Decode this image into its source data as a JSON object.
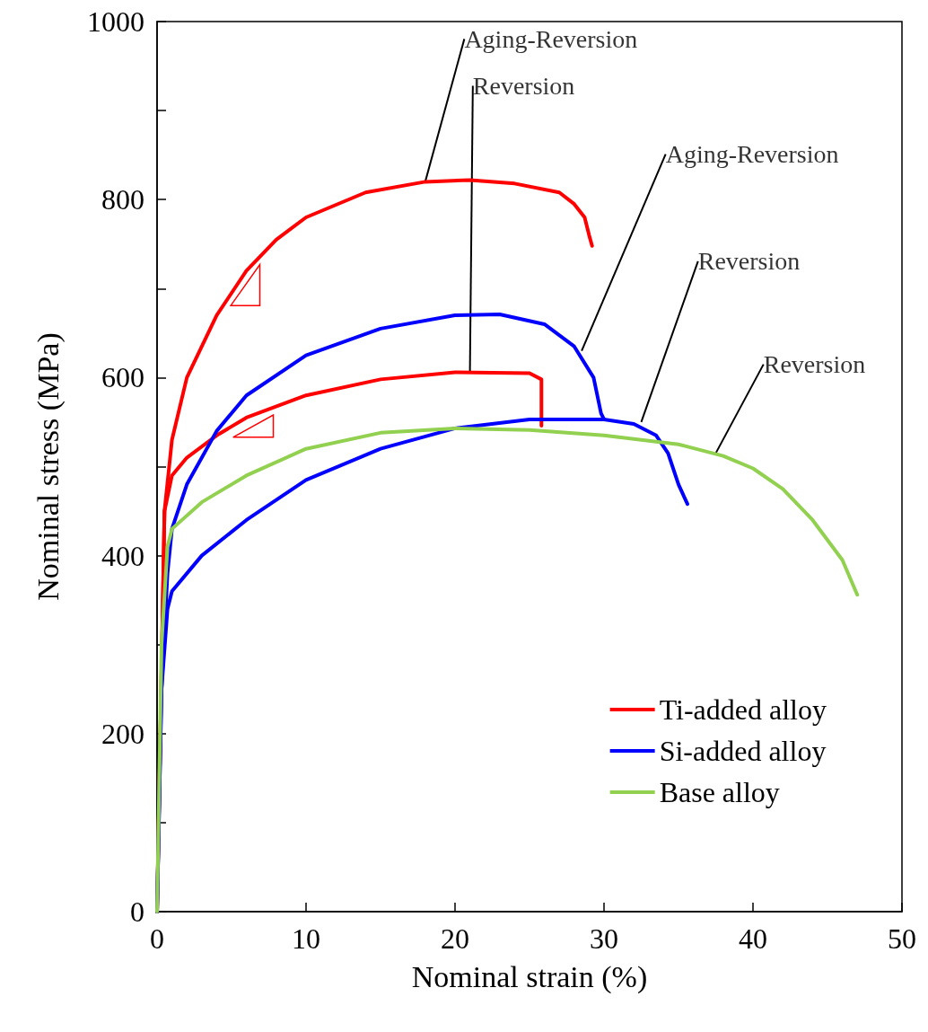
{
  "chart_data": {
    "type": "line",
    "xlabel": "Nominal strain (%)",
    "ylabel": "Nominal stress (MPa)",
    "xlim": [
      0,
      50
    ],
    "xticks": [
      0,
      10,
      20,
      30,
      40,
      50
    ],
    "ylim": [
      0,
      1000
    ],
    "yticks": [
      0,
      {
        "value": 100,
        "label": null
      },
      200,
      {
        "value": 300,
        "label": null
      },
      400,
      {
        "value": 500,
        "label": null
      },
      600,
      {
        "value": 700,
        "label": null
      },
      800,
      {
        "value": 900,
        "label": null
      },
      1000
    ],
    "grid": false,
    "legend": "bottom right",
    "marker": "none",
    "line_style": "solid",
    "series": [
      {
        "name": "Ti-added alloy",
        "color": "#ff0000",
        "x": [
          0,
          0.5,
          1,
          2,
          4,
          6,
          8,
          10,
          14,
          18,
          21,
          24,
          27,
          28,
          28.7,
          29,
          29.2
        ],
        "values": [
          0,
          450,
          530,
          600,
          670,
          720,
          755,
          780,
          808,
          820,
          822,
          818,
          808,
          795,
          780,
          760,
          748
        ]
      },
      {
        "color": "#ff0000",
        "x": [
          0,
          0.5,
          1,
          2,
          4,
          6,
          10,
          15,
          20,
          25,
          25.8,
          25.8
        ],
        "values": [
          0,
          450,
          490,
          510,
          535,
          555,
          580,
          598,
          606,
          605,
          598,
          546
        ]
      },
      {
        "name": "Si-added alloy",
        "color": "#0000ff",
        "x": [
          0,
          0.3,
          0.7,
          1,
          2,
          4,
          6,
          10,
          15,
          20,
          23,
          26,
          28,
          29.3,
          29.8,
          30
        ],
        "values": [
          0,
          250,
          380,
          430,
          480,
          540,
          580,
          625,
          655,
          670,
          671,
          660,
          635,
          600,
          560,
          553
        ]
      },
      {
        "color": "#0000ff",
        "x": [
          0,
          0.3,
          0.7,
          1,
          3,
          6,
          10,
          15,
          20,
          25,
          30,
          32,
          33.5,
          34.3,
          35,
          35.6
        ],
        "values": [
          0,
          250,
          340,
          360,
          400,
          440,
          485,
          520,
          543,
          553,
          553,
          548,
          535,
          515,
          480,
          458
        ]
      },
      {
        "name": "Base alloy",
        "color": "#92d050",
        "x": [
          0,
          0.3,
          0.7,
          1,
          3,
          6,
          10,
          15,
          20,
          25,
          30,
          35,
          38,
          40,
          42,
          44,
          46,
          47
        ],
        "values": [
          0,
          300,
          410,
          430,
          460,
          490,
          520,
          538,
          543,
          541,
          535,
          525,
          512,
          498,
          475,
          440,
          395,
          356
        ]
      }
    ],
    "annotations": [
      {
        "text": "Aging-Reversion",
        "x": 18,
        "y": 820
      },
      {
        "text": "Reversion",
        "x": 21,
        "y": 606
      },
      {
        "text": "Aging-Reversion",
        "x": 28.5,
        "y": 630
      },
      {
        "text": "Reversion",
        "x": 32.5,
        "y": 550
      },
      {
        "text": "Reversion",
        "x": 37.5,
        "y": 515
      }
    ]
  }
}
